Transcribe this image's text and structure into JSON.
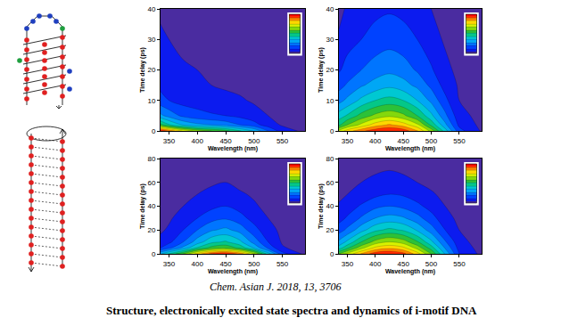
{
  "chart_data": [
    {
      "type": "contour",
      "xlabel": "Wavelength (nm)",
      "ylabel": "Time delay (ps)",
      "xlim": [
        335,
        590
      ],
      "xticks": [
        350,
        400,
        450,
        500,
        550
      ],
      "ylim": [
        0,
        40
      ],
      "yticks": [
        0,
        10,
        20,
        30,
        40
      ],
      "zlim": [
        0,
        1
      ],
      "x": [
        335,
        350,
        375,
        400,
        425,
        450,
        475,
        500,
        525,
        550,
        590
      ],
      "y": [
        0,
        2,
        5,
        10,
        15,
        20,
        30,
        40
      ],
      "z": [
        [
          1.0,
          0.9,
          0.75,
          0.65,
          0.6,
          0.55,
          0.45,
          0.35,
          0.2,
          0.08,
          0.02
        ],
        [
          0.55,
          0.45,
          0.35,
          0.3,
          0.28,
          0.25,
          0.2,
          0.15,
          0.08,
          0.03,
          0.01
        ],
        [
          0.3,
          0.25,
          0.18,
          0.15,
          0.13,
          0.12,
          0.1,
          0.07,
          0.04,
          0.02,
          0
        ],
        [
          0.15,
          0.12,
          0.09,
          0.08,
          0.07,
          0.06,
          0.05,
          0.03,
          0.02,
          0.01,
          0
        ],
        [
          0.1,
          0.08,
          0.06,
          0.05,
          0.04,
          0.03,
          0.02,
          0.01,
          0,
          0,
          0
        ],
        [
          0.08,
          0.06,
          0.05,
          0.04,
          0.02,
          0.01,
          0,
          0,
          0,
          0,
          0
        ],
        [
          0.06,
          0.04,
          0.02,
          0.01,
          0,
          0,
          0,
          0,
          0,
          0,
          0
        ],
        [
          0.02,
          0.01,
          0,
          0,
          0,
          0,
          0,
          0,
          0,
          0,
          0
        ]
      ]
    },
    {
      "type": "contour",
      "xlabel": "Wavelength (nm)",
      "ylabel": "Time delay (ps)",
      "xlim": [
        335,
        590
      ],
      "xticks": [
        350,
        400,
        450,
        500,
        550
      ],
      "ylim": [
        0,
        40
      ],
      "yticks": [
        0,
        10,
        20,
        30,
        40
      ],
      "zlim": [
        0,
        1
      ],
      "x": [
        335,
        350,
        375,
        400,
        425,
        450,
        475,
        500,
        525,
        550,
        590
      ],
      "y": [
        0,
        2,
        5,
        10,
        15,
        20,
        30,
        40
      ],
      "z": [
        [
          0.7,
          0.8,
          0.9,
          0.97,
          1.0,
          0.97,
          0.85,
          0.65,
          0.4,
          0.15,
          0.03
        ],
        [
          0.5,
          0.6,
          0.7,
          0.8,
          0.85,
          0.8,
          0.7,
          0.5,
          0.3,
          0.1,
          0.02
        ],
        [
          0.4,
          0.45,
          0.55,
          0.62,
          0.66,
          0.62,
          0.52,
          0.38,
          0.22,
          0.07,
          0.01
        ],
        [
          0.25,
          0.3,
          0.38,
          0.44,
          0.47,
          0.44,
          0.36,
          0.26,
          0.14,
          0.04,
          0
        ],
        [
          0.17,
          0.21,
          0.27,
          0.31,
          0.34,
          0.31,
          0.26,
          0.18,
          0.09,
          0.03,
          0
        ],
        [
          0.11,
          0.15,
          0.2,
          0.24,
          0.26,
          0.24,
          0.19,
          0.13,
          0.06,
          0.02,
          0
        ],
        [
          0.05,
          0.09,
          0.12,
          0.15,
          0.17,
          0.15,
          0.12,
          0.07,
          0.03,
          0.01,
          0
        ],
        [
          0.02,
          0.05,
          0.08,
          0.1,
          0.11,
          0.1,
          0.07,
          0.04,
          0.01,
          0,
          0
        ]
      ]
    },
    {
      "type": "contour",
      "xlabel": "Wavelength (nm)",
      "ylabel": "Time delay (ps)",
      "xlim": [
        335,
        590
      ],
      "xticks": [
        350,
        400,
        450,
        500,
        550
      ],
      "ylim": [
        0,
        80
      ],
      "yticks": [
        0,
        20,
        40,
        60,
        80
      ],
      "zlim": [
        0,
        1
      ],
      "x": [
        335,
        350,
        375,
        400,
        425,
        450,
        475,
        500,
        525,
        550,
        590
      ],
      "y": [
        0,
        5,
        10,
        20,
        30,
        40,
        50,
        60,
        70,
        80
      ],
      "z": [
        [
          0.35,
          0.45,
          0.6,
          0.8,
          0.95,
          1.0,
          0.9,
          0.7,
          0.4,
          0.15,
          0.02
        ],
        [
          0.12,
          0.18,
          0.3,
          0.45,
          0.55,
          0.58,
          0.5,
          0.35,
          0.18,
          0.05,
          0
        ],
        [
          0.06,
          0.1,
          0.2,
          0.32,
          0.42,
          0.45,
          0.38,
          0.25,
          0.12,
          0.03,
          0
        ],
        [
          0.03,
          0.05,
          0.12,
          0.2,
          0.27,
          0.3,
          0.25,
          0.15,
          0.07,
          0.02,
          0
        ],
        [
          0.02,
          0.03,
          0.07,
          0.12,
          0.17,
          0.19,
          0.15,
          0.09,
          0.04,
          0.01,
          0
        ],
        [
          0.01,
          0.02,
          0.04,
          0.07,
          0.1,
          0.12,
          0.09,
          0.05,
          0.02,
          0,
          0
        ],
        [
          0,
          0.01,
          0.02,
          0.04,
          0.06,
          0.07,
          0.05,
          0.03,
          0.01,
          0,
          0
        ],
        [
          0,
          0,
          0.01,
          0.02,
          0.03,
          0.04,
          0.02,
          0.01,
          0,
          0,
          0
        ],
        [
          0,
          0,
          0,
          0.01,
          0.01,
          0.02,
          0.01,
          0,
          0,
          0,
          0
        ],
        [
          0,
          0,
          0,
          0,
          0,
          0,
          0,
          0,
          0,
          0,
          0
        ]
      ]
    },
    {
      "type": "contour",
      "xlabel": "Wavelength (nm)",
      "ylabel": "Time delay (ps)",
      "xlim": [
        335,
        590
      ],
      "xticks": [
        350,
        400,
        450,
        500,
        550
      ],
      "ylim": [
        0,
        80
      ],
      "yticks": [
        0,
        20,
        40,
        60,
        80
      ],
      "zlim": [
        0,
        1
      ],
      "x": [
        335,
        350,
        375,
        400,
        425,
        450,
        475,
        500,
        525,
        550,
        590
      ],
      "y": [
        0,
        5,
        10,
        20,
        30,
        40,
        50,
        60,
        70,
        80
      ],
      "z": [
        [
          0.6,
          0.7,
          0.85,
          0.97,
          1.0,
          0.95,
          0.8,
          0.6,
          0.35,
          0.12,
          0.02
        ],
        [
          0.4,
          0.5,
          0.65,
          0.78,
          0.82,
          0.78,
          0.65,
          0.48,
          0.27,
          0.09,
          0.01
        ],
        [
          0.3,
          0.38,
          0.52,
          0.63,
          0.68,
          0.64,
          0.53,
          0.38,
          0.21,
          0.07,
          0
        ],
        [
          0.16,
          0.22,
          0.33,
          0.42,
          0.46,
          0.43,
          0.35,
          0.24,
          0.12,
          0.04,
          0
        ],
        [
          0.09,
          0.13,
          0.21,
          0.28,
          0.31,
          0.29,
          0.23,
          0.15,
          0.07,
          0.02,
          0
        ],
        [
          0.05,
          0.08,
          0.13,
          0.18,
          0.2,
          0.18,
          0.14,
          0.09,
          0.04,
          0.01,
          0
        ],
        [
          0.02,
          0.04,
          0.07,
          0.1,
          0.12,
          0.11,
          0.08,
          0.05,
          0.02,
          0,
          0
        ],
        [
          0.01,
          0.02,
          0.04,
          0.06,
          0.07,
          0.06,
          0.04,
          0.02,
          0.01,
          0,
          0
        ],
        [
          0,
          0.01,
          0.02,
          0.03,
          0.04,
          0.03,
          0.02,
          0.01,
          0,
          0,
          0
        ],
        [
          0,
          0,
          0,
          0.01,
          0.01,
          0.01,
          0,
          0,
          0,
          0,
          0
        ]
      ]
    }
  ],
  "citation": "Chem. Asian J. 2018, 13, 3706",
  "title": "Structure, electronically excited state spectra and dynamics of i-motif DNA"
}
